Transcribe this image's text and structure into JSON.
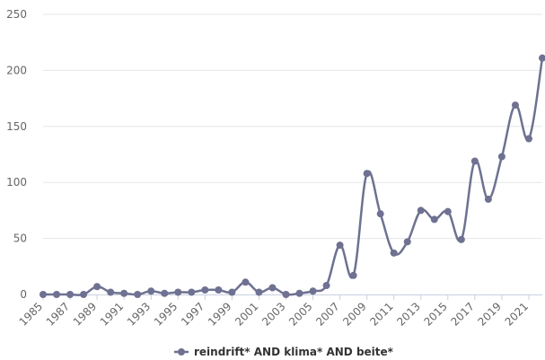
{
  "chart_data": {
    "type": "line",
    "title": "",
    "xlabel": "",
    "ylabel": "",
    "x": [
      1985,
      1986,
      1987,
      1988,
      1989,
      1990,
      1991,
      1992,
      1993,
      1994,
      1995,
      1996,
      1997,
      1998,
      1999,
      2000,
      2001,
      2002,
      2003,
      2004,
      2005,
      2006,
      2007,
      2008,
      2009,
      2010,
      2011,
      2012,
      2013,
      2014,
      2015,
      2016,
      2017,
      2018,
      2019,
      2020,
      2021,
      2022
    ],
    "x_tick_labels": [
      "1985",
      "1987",
      "1989",
      "1991",
      "1993",
      "1995",
      "1997",
      "1999",
      "2001",
      "2003",
      "2005",
      "2007",
      "2009",
      "2011",
      "2013",
      "2015",
      "2017",
      "2019",
      "2021"
    ],
    "y_ticks": [
      0,
      50,
      100,
      150,
      200,
      250
    ],
    "ylim": [
      0,
      250
    ],
    "grid": true,
    "legend_position": "bottom-center",
    "series": [
      {
        "name": "reindrift* AND klima* AND beite*",
        "color": "#6e7191",
        "values": [
          0,
          0,
          0,
          0,
          7,
          2,
          1,
          0,
          3,
          1,
          2,
          2,
          4,
          4,
          2,
          11,
          2,
          6,
          0,
          1,
          3,
          8,
          44,
          17,
          108,
          72,
          37,
          47,
          75,
          67,
          74,
          49,
          119,
          85,
          123,
          169,
          139,
          211
        ]
      }
    ]
  }
}
